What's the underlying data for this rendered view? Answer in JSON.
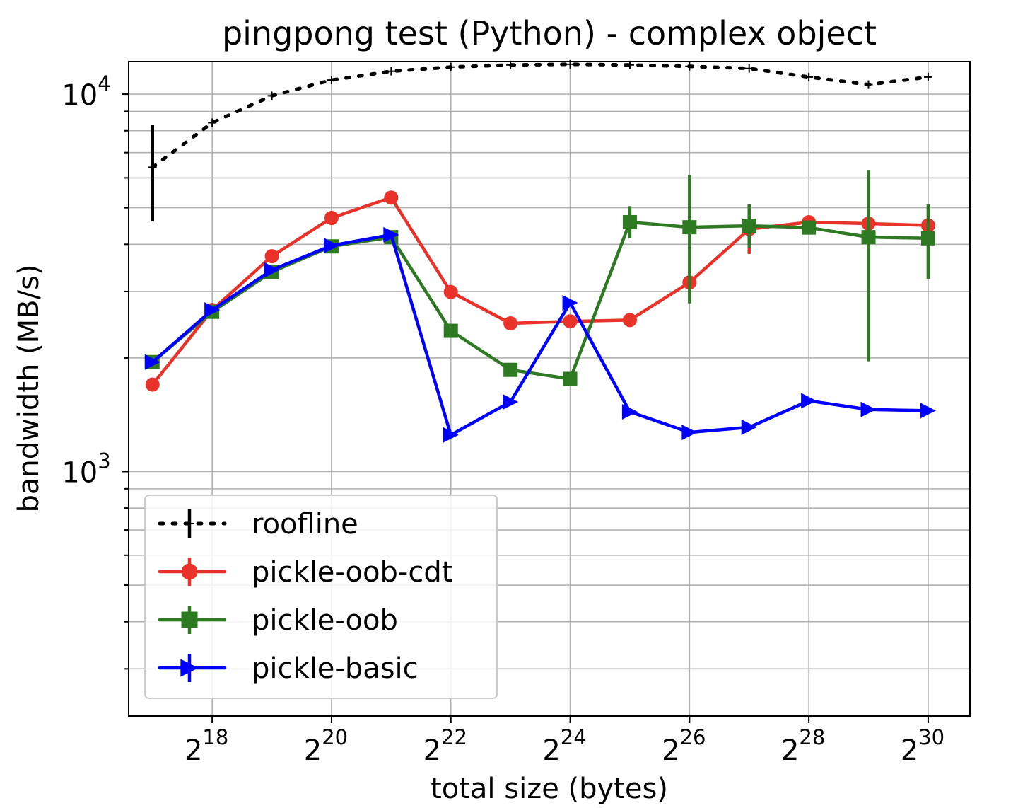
{
  "chart_data": {
    "type": "line",
    "title": "pingpong test (Python) - complex object",
    "xlabel": "total size (bytes)",
    "ylabel": "bandwidth (MB/s)",
    "x_scale": "log2",
    "y_scale": "log10",
    "xlim_exponent": [
      16.6,
      30.7
    ],
    "ylim": [
      225,
      12200
    ],
    "grid": true,
    "legend_position": "lower-left",
    "x_tick_exponents": [
      18,
      20,
      22,
      24,
      26,
      28,
      30
    ],
    "x_tick_base": "2",
    "y_tick_labels": [
      {
        "base": "10",
        "exponent": "4",
        "value": 10000
      },
      {
        "base": "10",
        "exponent": "3",
        "value": 1000
      }
    ],
    "x_exponents": [
      17,
      18,
      19,
      20,
      21,
      22,
      23,
      24,
      25,
      26,
      27,
      28,
      29,
      30
    ],
    "series": [
      {
        "name": "roofline",
        "color": "#000000",
        "line_style": "dotted",
        "marker": "plus",
        "values": [
          6400,
          8400,
          9900,
          10900,
          11500,
          11800,
          11950,
          12000,
          11950,
          11850,
          11700,
          11100,
          10600,
          11100
        ],
        "err_low": [
          4600,
          null,
          null,
          null,
          null,
          null,
          null,
          null,
          null,
          null,
          null,
          null,
          null,
          null
        ],
        "err_high": [
          8300,
          null,
          null,
          null,
          null,
          null,
          null,
          null,
          null,
          null,
          null,
          null,
          null,
          null
        ]
      },
      {
        "name": "pickle-oob-cdt",
        "color": "#e8322a",
        "line_style": "solid",
        "marker": "circle",
        "values": [
          1700,
          2680,
          3720,
          4700,
          5320,
          2990,
          2470,
          2500,
          2520,
          3170,
          4390,
          4580,
          4540,
          4490
        ],
        "err_low": [
          null,
          null,
          null,
          4500,
          5100,
          null,
          null,
          null,
          null,
          null,
          3770,
          null,
          null,
          null
        ],
        "err_high": [
          null,
          null,
          null,
          4900,
          5500,
          null,
          null,
          null,
          null,
          null,
          4700,
          null,
          null,
          null
        ]
      },
      {
        "name": "pickle-oob",
        "color": "#2e7a22",
        "line_style": "solid",
        "marker": "square",
        "values": [
          1950,
          2650,
          3380,
          3950,
          4180,
          2360,
          1860,
          1760,
          4580,
          4440,
          4480,
          4430,
          4180,
          4150
        ],
        "err_low": [
          null,
          null,
          null,
          null,
          null,
          null,
          null,
          null,
          4150,
          2790,
          3920,
          null,
          1960,
          3240
        ],
        "err_high": [
          null,
          null,
          null,
          null,
          null,
          null,
          null,
          null,
          5050,
          6100,
          5100,
          null,
          6300,
          5100
        ]
      },
      {
        "name": "pickle-basic",
        "color": "#0000ff",
        "line_style": "solid",
        "marker": "triangle-right",
        "values": [
          1950,
          2680,
          3420,
          3970,
          4240,
          1250,
          1530,
          2800,
          1440,
          1270,
          1310,
          1540,
          1460,
          1450
        ],
        "err_low": [
          null,
          null,
          null,
          null,
          null,
          null,
          null,
          null,
          null,
          null,
          null,
          null,
          null,
          null
        ],
        "err_high": [
          null,
          null,
          null,
          null,
          null,
          null,
          null,
          null,
          null,
          null,
          null,
          null,
          null,
          null
        ]
      }
    ]
  }
}
